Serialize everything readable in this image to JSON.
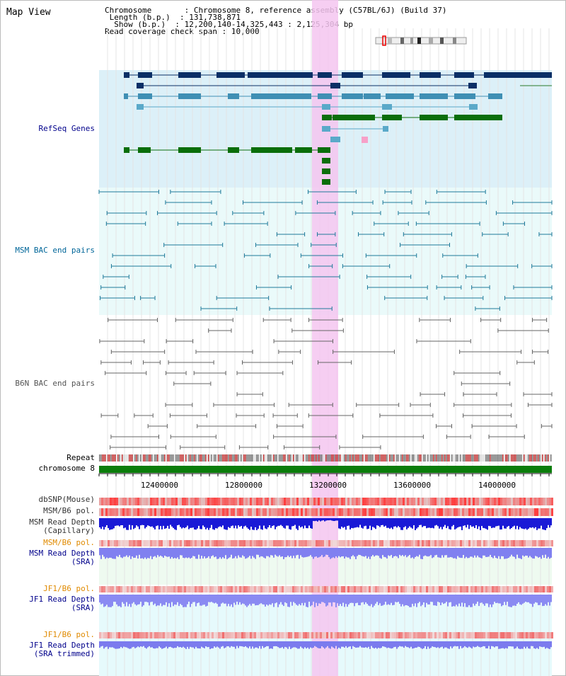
{
  "title": "Map View",
  "info": {
    "chromosome_key": "Chromosome",
    "chromosome_val": "Chromosome 8, reference assembly (C57BL/6J) (Build 37)",
    "length_key": "Length (b.p.)",
    "length_val": "131,738,871",
    "show_key": "Show (b.p.)",
    "show_val": "12,200,140-14,325,443 : 2,125,304 bp",
    "coverage_key": "Read coverage check span",
    "coverage_val": "10,000"
  },
  "tracks": {
    "refseq": "RefSeq Genes",
    "msm_bac": "MSM BAC end pairs",
    "b6n_bac": "B6N BAC end pairs",
    "repeat": "Repeat",
    "chromosome": "chromosome 8",
    "dbsnp": "dbSNP(Mouse)",
    "msm_pol1": "MSM/B6 pol.",
    "msm_depth_cap_1": "MSM Read Depth",
    "msm_depth_cap_2": "(Capillary)",
    "msm_pol2": "MSM/B6 pol.",
    "msm_depth_sra_1": "MSM Read Depth",
    "msm_depth_sra_2": "(SRA)",
    "jf1_pol1": "JF1/B6 pol.",
    "jf1_depth_sra_1": "JF1 Read Depth",
    "jf1_depth_sra_2": "(SRA)",
    "jf1_pol2": "JF1/B6 pol.",
    "jf1_depth_trim_1": "JF1 Read Depth",
    "jf1_depth_trim_2": "(SRA trimmed)"
  },
  "axis": {
    "ticks": [
      "12400000",
      "12800000",
      "13200000",
      "13600000",
      "14000000"
    ]
  },
  "colors": {
    "refseq_label": "#00008b",
    "msm_label": "#006699",
    "b6n_label": "#555555",
    "orange_label": "#e08a00",
    "blue_label": "#00008b",
    "highlight": "#f5c6f0"
  }
}
